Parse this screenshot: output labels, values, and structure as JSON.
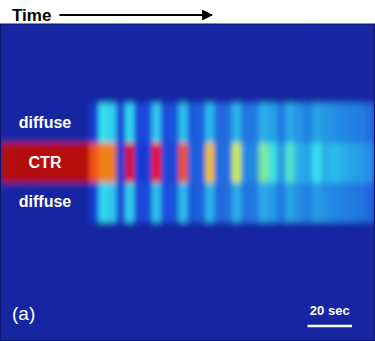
{
  "chart_data": {
    "type": "heatmap",
    "xlabel": "Time",
    "panel_label": "(a)",
    "tick_labels": "y",
    "categories": [
      null,
      null,
      "diffuse",
      "CTR",
      "diffuse",
      null,
      null,
      null
    ],
    "x_bins": [
      0,
      4,
      8,
      12,
      16,
      20,
      24,
      28,
      32,
      36,
      40,
      44,
      48,
      52,
      56,
      60,
      64,
      68,
      72,
      76,
      80,
      84,
      88,
      92,
      96,
      100,
      104,
      108,
      112,
      116,
      120,
      124,
      128,
      132,
      136,
      140,
      144,
      148,
      152,
      156,
      160,
      164,
      168
    ],
    "xlim": [
      0,
      168
    ],
    "xticks": [],
    "zlim": [
      0,
      1
    ],
    "values": [
      [
        0.06,
        0.06,
        0.06,
        0.06,
        0.06,
        0.06,
        0.06,
        0.06,
        0.06,
        0.06,
        0.06,
        0.06,
        0.06,
        0.06,
        0.06,
        0.06,
        0.06,
        0.06,
        0.06,
        0.06,
        0.06,
        0.06,
        0.06,
        0.06,
        0.06,
        0.06,
        0.06,
        0.06,
        0.06,
        0.06,
        0.06,
        0.06,
        0.06,
        0.06,
        0.06,
        0.06,
        0.06,
        0.06,
        0.06,
        0.06,
        0.06,
        0.06
      ],
      [
        0.06,
        0.06,
        0.06,
        0.06,
        0.06,
        0.06,
        0.06,
        0.06,
        0.06,
        0.06,
        0.06,
        0.06,
        0.06,
        0.06,
        0.06,
        0.06,
        0.06,
        0.06,
        0.06,
        0.06,
        0.06,
        0.06,
        0.06,
        0.06,
        0.06,
        0.06,
        0.06,
        0.06,
        0.06,
        0.06,
        0.06,
        0.06,
        0.06,
        0.06,
        0.06,
        0.06,
        0.06,
        0.06,
        0.06,
        0.06,
        0.06,
        0.06
      ],
      [
        0.06,
        0.06,
        0.06,
        0.06,
        0.06,
        0.06,
        0.06,
        0.06,
        0.06,
        0.06,
        0.12,
        0.38,
        0.35,
        0.14,
        0.36,
        0.14,
        0.15,
        0.34,
        0.15,
        0.16,
        0.33,
        0.17,
        0.18,
        0.32,
        0.19,
        0.2,
        0.31,
        0.21,
        0.22,
        0.3,
        0.28,
        0.22,
        0.29,
        0.26,
        0.23,
        0.28,
        0.26,
        0.25,
        0.24,
        0.23,
        0.22,
        0.2
      ],
      [
        0.94,
        0.94,
        0.94,
        0.94,
        0.94,
        0.94,
        0.94,
        0.94,
        0.94,
        0.94,
        0.8,
        0.75,
        0.75,
        0.12,
        0.9,
        0.12,
        0.12,
        0.88,
        0.14,
        0.14,
        0.8,
        0.18,
        0.18,
        0.68,
        0.2,
        0.2,
        0.58,
        0.24,
        0.24,
        0.48,
        0.4,
        0.27,
        0.42,
        0.3,
        0.28,
        0.38,
        0.3,
        0.32,
        0.3,
        0.28,
        0.27,
        0.25
      ],
      [
        0.06,
        0.06,
        0.06,
        0.06,
        0.06,
        0.06,
        0.06,
        0.06,
        0.06,
        0.06,
        0.12,
        0.36,
        0.34,
        0.14,
        0.35,
        0.14,
        0.15,
        0.33,
        0.15,
        0.16,
        0.32,
        0.17,
        0.18,
        0.31,
        0.19,
        0.2,
        0.3,
        0.21,
        0.22,
        0.29,
        0.27,
        0.22,
        0.28,
        0.25,
        0.23,
        0.27,
        0.25,
        0.24,
        0.23,
        0.22,
        0.21,
        0.19
      ],
      [
        0.06,
        0.06,
        0.06,
        0.06,
        0.06,
        0.06,
        0.06,
        0.06,
        0.06,
        0.06,
        0.06,
        0.06,
        0.06,
        0.06,
        0.06,
        0.06,
        0.06,
        0.06,
        0.06,
        0.06,
        0.06,
        0.06,
        0.06,
        0.06,
        0.06,
        0.06,
        0.06,
        0.06,
        0.06,
        0.06,
        0.06,
        0.06,
        0.06,
        0.06,
        0.06,
        0.06,
        0.06,
        0.06,
        0.06,
        0.06,
        0.06,
        0.06
      ],
      [
        0.06,
        0.06,
        0.06,
        0.06,
        0.06,
        0.06,
        0.06,
        0.06,
        0.06,
        0.06,
        0.06,
        0.06,
        0.06,
        0.06,
        0.06,
        0.06,
        0.06,
        0.06,
        0.06,
        0.06,
        0.06,
        0.06,
        0.06,
        0.06,
        0.06,
        0.06,
        0.06,
        0.06,
        0.06,
        0.06,
        0.06,
        0.06,
        0.06,
        0.06,
        0.06,
        0.06,
        0.06,
        0.06,
        0.06,
        0.06,
        0.06,
        0.06
      ],
      [
        0.06,
        0.06,
        0.06,
        0.06,
        0.06,
        0.06,
        0.06,
        0.06,
        0.06,
        0.06,
        0.06,
        0.06,
        0.06,
        0.06,
        0.06,
        0.06,
        0.06,
        0.06,
        0.06,
        0.06,
        0.06,
        0.06,
        0.06,
        0.06,
        0.06,
        0.06,
        0.06,
        0.06,
        0.06,
        0.06,
        0.06,
        0.06,
        0.06,
        0.06,
        0.06,
        0.06,
        0.06,
        0.06,
        0.06,
        0.06,
        0.06,
        0.06
      ]
    ],
    "scale_bar": {
      "value": 20,
      "label": "20 sec"
    }
  }
}
